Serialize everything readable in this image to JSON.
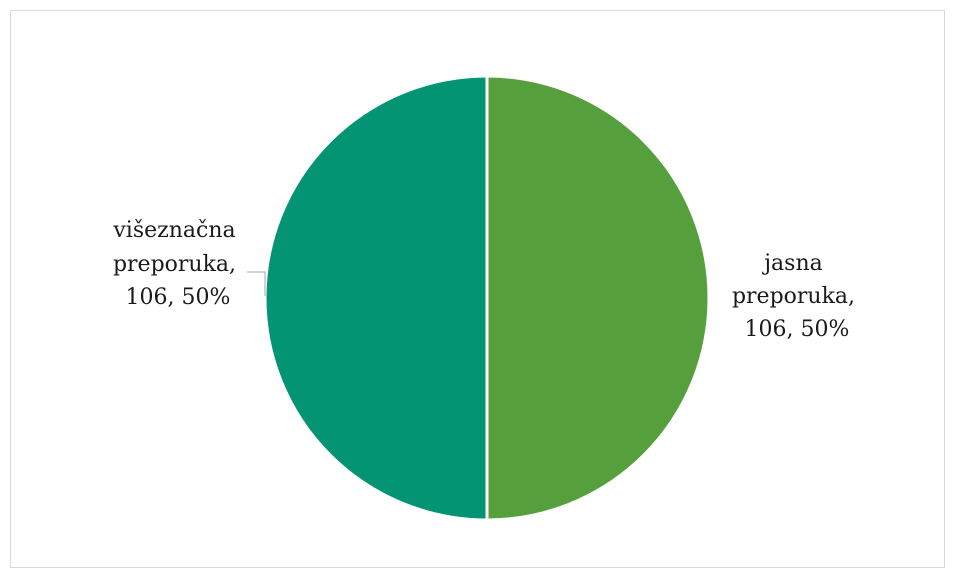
{
  "chart_data": {
    "type": "pie",
    "categories": [
      "jasna preporuka",
      "višeznačna preporuka"
    ],
    "values": [
      106,
      106
    ],
    "percentages": [
      50,
      50
    ],
    "colors": [
      "#55A03D",
      "#039474"
    ],
    "data_labels": [
      [
        "jasna",
        "preporuka,",
        "106, 50%"
      ],
      [
        "višeznačna",
        "preporuka,",
        "106, 50%"
      ]
    ],
    "start_angle_deg": 0,
    "direction": "clockwise",
    "legend": "none"
  }
}
